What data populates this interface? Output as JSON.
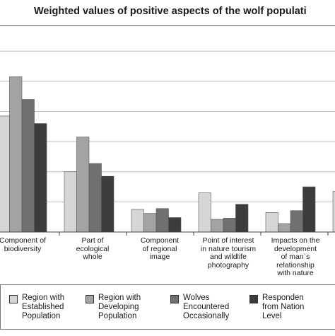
{
  "chart_data": {
    "type": "bar",
    "title": "Weighted values of positive aspects of the wolf populati",
    "categories": [
      "Component of\nbiodiversity",
      "Part of\necological\nwhole",
      "Component\nof regional\nimage",
      "Point of interest\nin nature tourism\nand wildlife\nphotography",
      "Impacts on the\ndevelopment\nof man`s\nrelationship\nwith nature",
      ""
    ],
    "series": [
      {
        "name": "Region with\nEstablished\nPopulation",
        "color": "#d6d6d6",
        "values": [
          3.85,
          2.0,
          0.75,
          1.3,
          0.65,
          1.35
        ]
      },
      {
        "name": "Region with\nDeveloping\nPopulation",
        "color": "#a3a3a3",
        "values": [
          5.15,
          3.15,
          0.62,
          0.42,
          0.28,
          null
        ]
      },
      {
        "name": "Wolves\nEncountered\nOccasionally",
        "color": "#707070",
        "values": [
          4.4,
          2.27,
          0.78,
          0.46,
          0.71,
          null
        ]
      },
      {
        "name": "Responden\nfrom Nation\nLevel",
        "color": "#3c3c3c",
        "values": [
          3.6,
          1.85,
          0.48,
          0.92,
          1.5,
          null
        ]
      }
    ],
    "ylim": [
      0,
      6.5
    ],
    "grid": true,
    "legend_position": "bottom"
  }
}
